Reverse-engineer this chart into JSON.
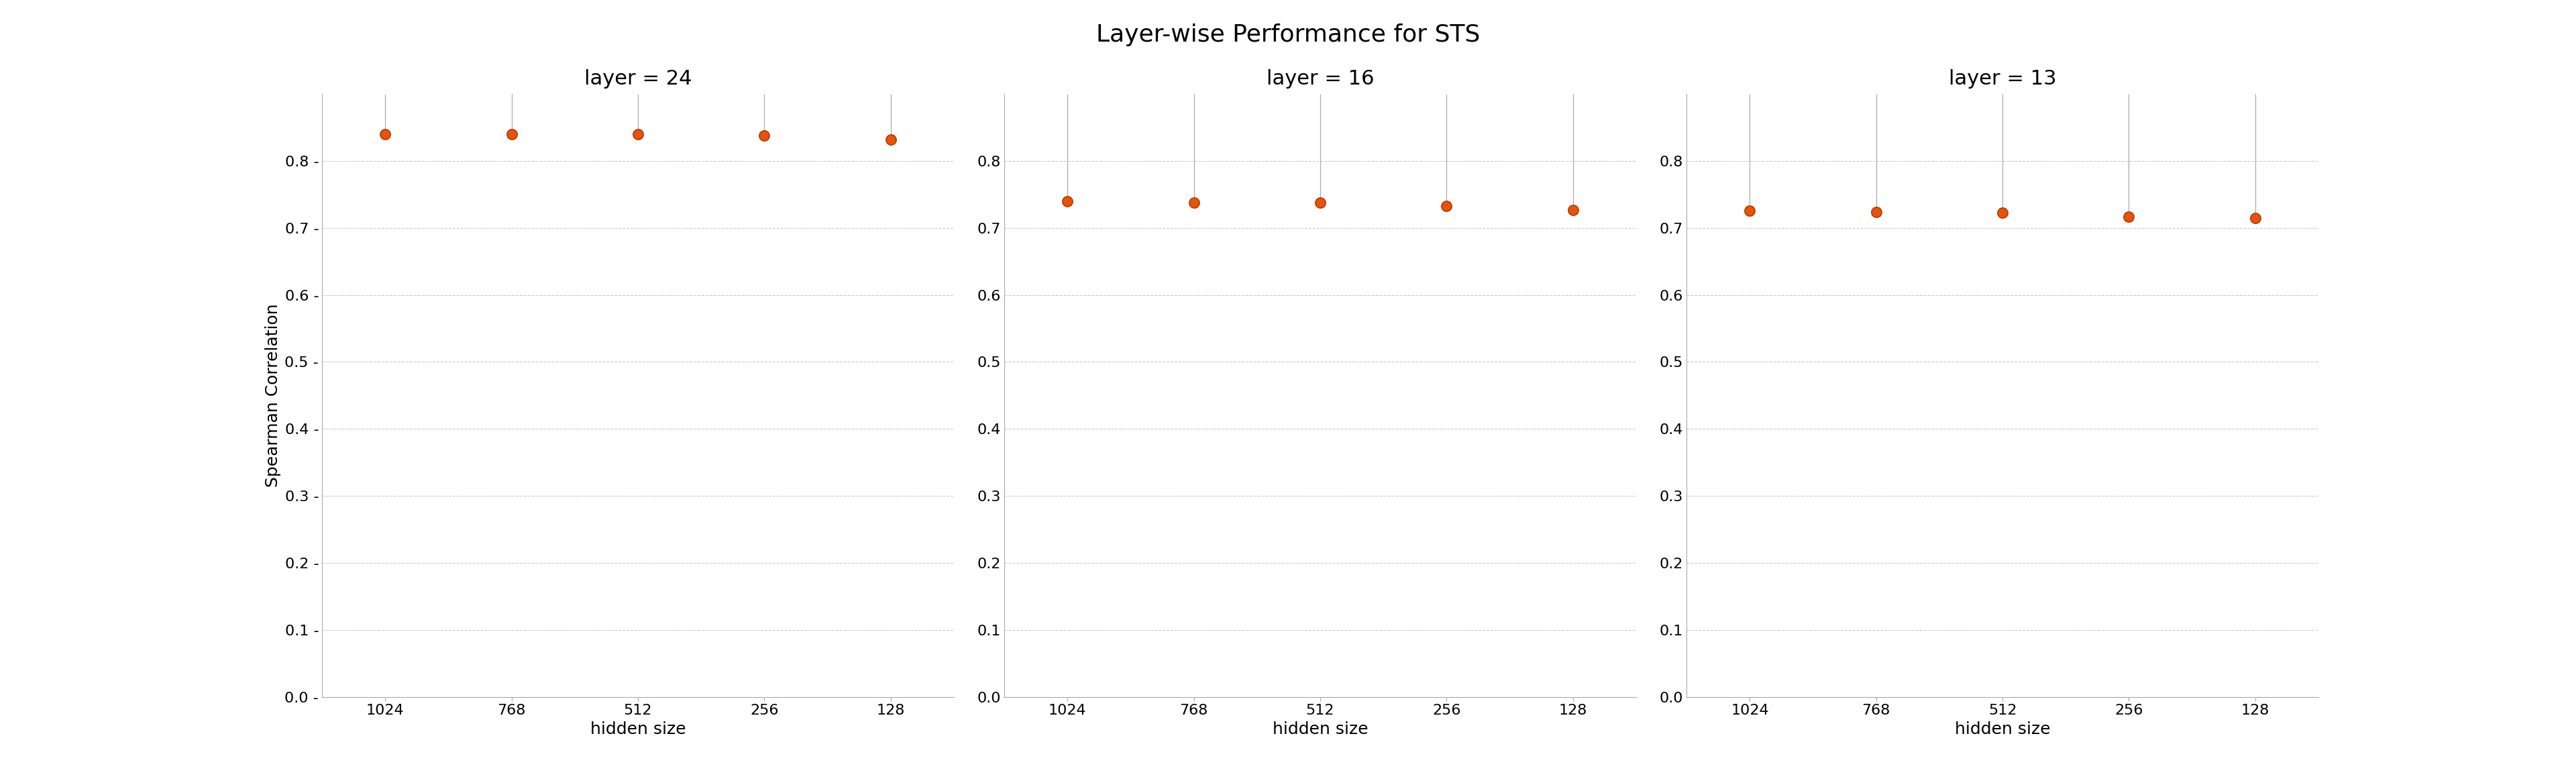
{
  "title": "Layer-wise Performance for STS",
  "panels": [
    {
      "subtitle": "layer = 24",
      "x_labels": [
        "1024",
        "768",
        "512",
        "256",
        "128"
      ],
      "x_values": [
        1024,
        768,
        512,
        256,
        128
      ],
      "y_values": [
        0.84,
        0.84,
        0.84,
        0.838,
        0.832
      ]
    },
    {
      "subtitle": "layer = 16",
      "x_labels": [
        "1024",
        "768",
        "512",
        "256",
        "128"
      ],
      "x_values": [
        1024,
        768,
        512,
        256,
        128
      ],
      "y_values": [
        0.74,
        0.738,
        0.738,
        0.733,
        0.727
      ]
    },
    {
      "subtitle": "layer = 13",
      "x_labels": [
        "1024",
        "768",
        "512",
        "256",
        "128"
      ],
      "x_values": [
        1024,
        768,
        512,
        256,
        128
      ],
      "y_values": [
        0.726,
        0.724,
        0.723,
        0.717,
        0.715
      ]
    }
  ],
  "xlabel": "hidden size",
  "ylabel": "Spearman Correlation",
  "dot_color": "#e8520a",
  "dot_edge_color": "#b33c00",
  "vline_color": "#aaaaaa",
  "grid_color": "#cccccc",
  "background_color": "#ffffff",
  "ylim": [
    0.0,
    0.9
  ],
  "yticks": [
    0.0,
    0.1,
    0.2,
    0.3,
    0.4,
    0.5,
    0.6,
    0.7,
    0.8
  ],
  "dot_size": 120,
  "title_fontsize": 26,
  "subtitle_fontsize": 22,
  "axis_label_fontsize": 18,
  "tick_fontsize": 16
}
